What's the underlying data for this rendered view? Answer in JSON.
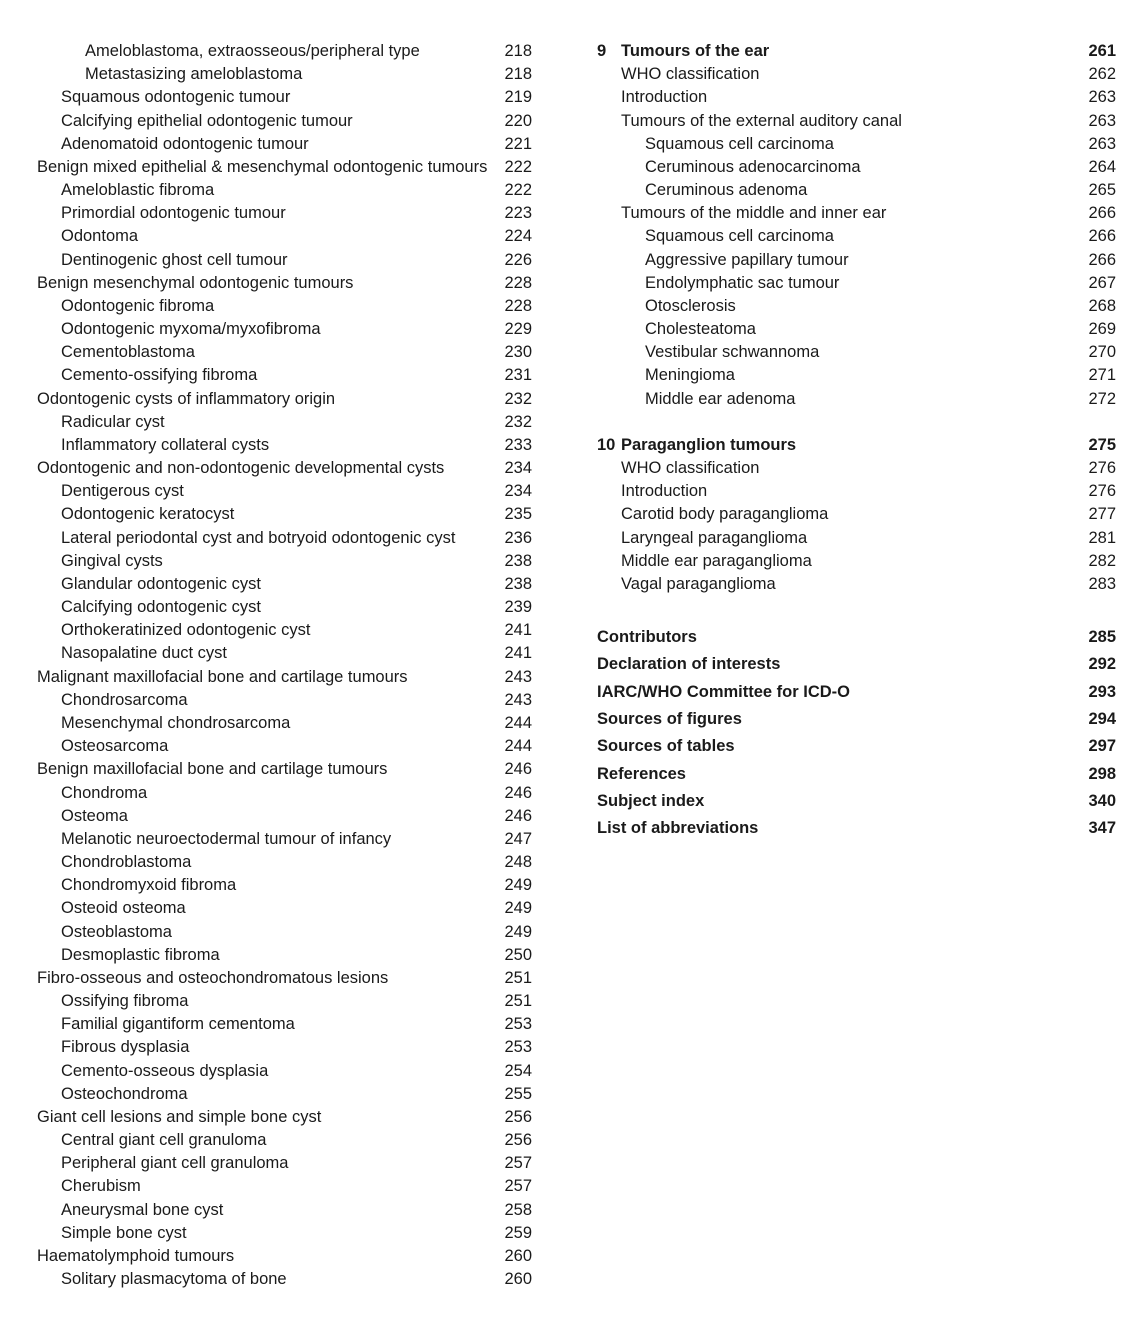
{
  "left_column": [
    {
      "title": "Ameloblastoma, extraosseous/peripheral type",
      "page": "218",
      "level": 2
    },
    {
      "title": "Metastasizing ameloblastoma",
      "page": "218",
      "level": 2
    },
    {
      "title": "Squamous odontogenic tumour",
      "page": "219",
      "level": 1
    },
    {
      "title": "Calcifying epithelial odontogenic tumour",
      "page": "220",
      "level": 1
    },
    {
      "title": "Adenomatoid odontogenic tumour",
      "page": "221",
      "level": 1
    },
    {
      "title": "Benign mixed epithelial & mesenchymal odontogenic tumours",
      "page": "222",
      "level": 0
    },
    {
      "title": "Ameloblastic fibroma",
      "page": "222",
      "level": 1
    },
    {
      "title": "Primordial odontogenic tumour",
      "page": "223",
      "level": 1
    },
    {
      "title": "Odontoma",
      "page": "224",
      "level": 1
    },
    {
      "title": "Dentinogenic ghost cell tumour",
      "page": "226",
      "level": 1
    },
    {
      "title": "Benign mesenchymal odontogenic tumours",
      "page": "228",
      "level": 0
    },
    {
      "title": "Odontogenic fibroma",
      "page": "228",
      "level": 1
    },
    {
      "title": "Odontogenic myxoma/myxofibroma",
      "page": "229",
      "level": 1
    },
    {
      "title": "Cementoblastoma",
      "page": "230",
      "level": 1
    },
    {
      "title": "Cemento-ossifying fibroma",
      "page": "231",
      "level": 1
    },
    {
      "title": "Odontogenic cysts of inflammatory origin",
      "page": "232",
      "level": 0
    },
    {
      "title": "Radicular cyst",
      "page": "232",
      "level": 1
    },
    {
      "title": "Inflammatory collateral cysts",
      "page": "233",
      "level": 1
    },
    {
      "title": "Odontogenic and non-odontogenic developmental cysts",
      "page": "234",
      "level": 0
    },
    {
      "title": "Dentigerous cyst",
      "page": "234",
      "level": 1
    },
    {
      "title": "Odontogenic keratocyst",
      "page": "235",
      "level": 1
    },
    {
      "title": "Lateral periodontal cyst and botryoid odontogenic cyst",
      "page": "236",
      "level": 1
    },
    {
      "title": "Gingival cysts",
      "page": "238",
      "level": 1
    },
    {
      "title": "Glandular odontogenic cyst",
      "page": "238",
      "level": 1
    },
    {
      "title": "Calcifying odontogenic cyst",
      "page": "239",
      "level": 1
    },
    {
      "title": "Orthokeratinized odontogenic cyst",
      "page": "241",
      "level": 1
    },
    {
      "title": "Nasopalatine duct cyst",
      "page": "241",
      "level": 1
    },
    {
      "title": "Malignant maxillofacial bone and cartilage tumours",
      "page": "243",
      "level": 0
    },
    {
      "title": "Chondrosarcoma",
      "page": "243",
      "level": 1
    },
    {
      "title": "Mesenchymal chondrosarcoma",
      "page": "244",
      "level": 1
    },
    {
      "title": "Osteosarcoma",
      "page": "244",
      "level": 1
    },
    {
      "title": "Benign maxillofacial bone and cartilage tumours",
      "page": "246",
      "level": 0
    },
    {
      "title": "Chondroma",
      "page": "246",
      "level": 1
    },
    {
      "title": "Osteoma",
      "page": "246",
      "level": 1
    },
    {
      "title": "Melanotic neuroectodermal tumour of infancy",
      "page": "247",
      "level": 1
    },
    {
      "title": "Chondroblastoma",
      "page": "248",
      "level": 1
    },
    {
      "title": "Chondromyxoid fibroma",
      "page": "249",
      "level": 1
    },
    {
      "title": "Osteoid osteoma",
      "page": "249",
      "level": 1
    },
    {
      "title": "Osteoblastoma",
      "page": "249",
      "level": 1
    },
    {
      "title": "Desmoplastic fibroma",
      "page": "250",
      "level": 1
    },
    {
      "title": "Fibro-osseous and osteochondromatous lesions",
      "page": "251",
      "level": 0
    },
    {
      "title": "Ossifying fibroma",
      "page": "251",
      "level": 1
    },
    {
      "title": "Familial gigantiform cementoma",
      "page": "253",
      "level": 1
    },
    {
      "title": "Fibrous dysplasia",
      "page": "253",
      "level": 1
    },
    {
      "title": "Cemento-osseous dysplasia",
      "page": "254",
      "level": 1
    },
    {
      "title": "Osteochondroma",
      "page": "255",
      "level": 1
    },
    {
      "title": "Giant cell lesions and simple bone cyst",
      "page": "256",
      "level": 0
    },
    {
      "title": "Central giant cell granuloma",
      "page": "256",
      "level": 1
    },
    {
      "title": "Peripheral giant cell granuloma",
      "page": "257",
      "level": 1
    },
    {
      "title": "Cherubism",
      "page": "257",
      "level": 1
    },
    {
      "title": "Aneurysmal bone cyst",
      "page": "258",
      "level": 1
    },
    {
      "title": "Simple bone cyst",
      "page": "259",
      "level": 1
    },
    {
      "title": "Haematolymphoid tumours",
      "page": "260",
      "level": 0
    },
    {
      "title": "Solitary plasmacytoma of bone",
      "page": "260",
      "level": 1
    }
  ],
  "chapter9": {
    "number": "9",
    "title": "Tumours of the ear",
    "page": "261",
    "entries": [
      {
        "title": "WHO classification",
        "page": "262",
        "level": 1
      },
      {
        "title": "Introduction",
        "page": "263",
        "level": 1
      },
      {
        "title": "Tumours of the external auditory canal",
        "page": "263",
        "level": 1
      },
      {
        "title": "Squamous cell carcinoma",
        "page": "263",
        "level": 2
      },
      {
        "title": "Ceruminous adenocarcinoma",
        "page": "264",
        "level": 2
      },
      {
        "title": "Ceruminous adenoma",
        "page": "265",
        "level": 2
      },
      {
        "title": "Tumours of the middle and inner ear",
        "page": "266",
        "level": 1
      },
      {
        "title": "Squamous cell carcinoma",
        "page": "266",
        "level": 2
      },
      {
        "title": "Aggressive papillary tumour",
        "page": "266",
        "level": 2
      },
      {
        "title": "Endolymphatic sac tumour",
        "page": "267",
        "level": 2
      },
      {
        "title": "Otosclerosis",
        "page": "268",
        "level": 2
      },
      {
        "title": "Cholesteatoma",
        "page": "269",
        "level": 2
      },
      {
        "title": "Vestibular schwannoma",
        "page": "270",
        "level": 2
      },
      {
        "title": "Meningioma",
        "page": "271",
        "level": 2
      },
      {
        "title": "Middle ear adenoma",
        "page": "272",
        "level": 2
      }
    ]
  },
  "chapter10": {
    "number": "10",
    "title": "Paraganglion tumours",
    "page": "275",
    "entries": [
      {
        "title": "WHO classification",
        "page": "276",
        "level": 1
      },
      {
        "title": "Introduction",
        "page": "276",
        "level": 1
      },
      {
        "title": "Carotid body paraganglioma",
        "page": "277",
        "level": 1
      },
      {
        "title": "Laryngeal paraganglioma",
        "page": "281",
        "level": 1
      },
      {
        "title": "Middle ear paraganglioma",
        "page": "282",
        "level": 1
      },
      {
        "title": "Vagal paraganglioma",
        "page": "283",
        "level": 1
      }
    ]
  },
  "back_matter": [
    {
      "title": "Contributors",
      "page": "285"
    },
    {
      "title": "Declaration of interests",
      "page": "292"
    },
    {
      "title": "IARC/WHO Committee for ICD-O",
      "page": "293"
    },
    {
      "title": "Sources of figures",
      "page": "294"
    },
    {
      "title": "Sources of tables",
      "page": "297"
    },
    {
      "title": "References",
      "page": "298"
    },
    {
      "title": "Subject index",
      "page": "340"
    },
    {
      "title": "List of abbreviations",
      "page": "347"
    }
  ]
}
